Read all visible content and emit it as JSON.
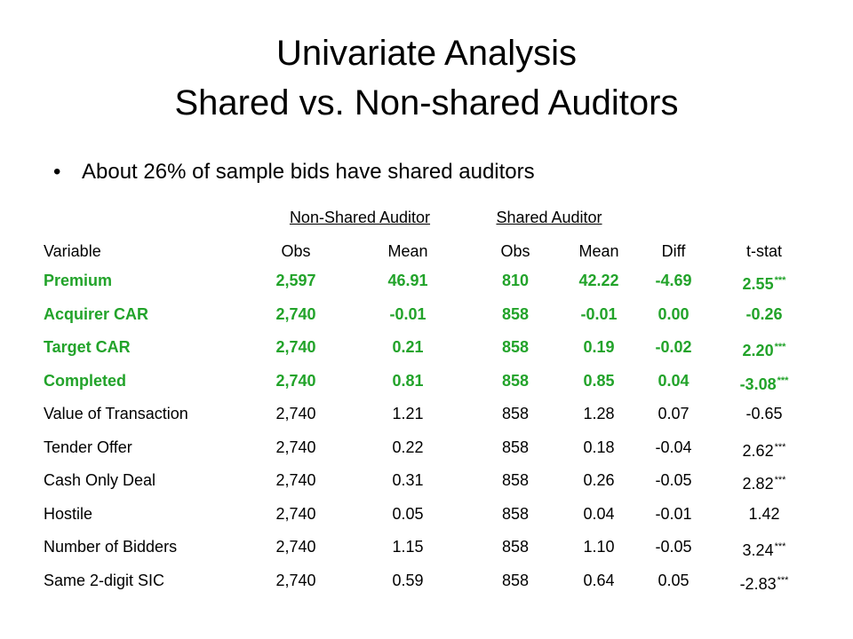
{
  "title": {
    "line1": "Univariate Analysis",
    "line2": "Shared vs. Non-shared Auditors"
  },
  "bullet": {
    "symbol": "•",
    "text": "About 26% of sample bids have shared auditors"
  },
  "group_headers": {
    "non_shared": "Non-Shared Auditor",
    "shared": "Shared Auditor"
  },
  "columns": {
    "variable": "Variable",
    "obs1": "Obs",
    "mean1": "Mean",
    "obs2": "Obs",
    "mean2": "Mean",
    "diff": "Diff",
    "tstat": "t-stat"
  },
  "colors": {
    "highlight": "#22a32a",
    "text": "#000000"
  },
  "rows": [
    {
      "variable": "Premium",
      "obs1": "2,597",
      "mean1": "46.91",
      "obs2": "810",
      "mean2": "42.22",
      "diff": "-4.69",
      "tstat": "2.55",
      "stars": "***",
      "highlight": true
    },
    {
      "variable": "Acquirer CAR",
      "obs1": "2,740",
      "mean1": "-0.01",
      "obs2": "858",
      "mean2": "-0.01",
      "diff": "0.00",
      "tstat": "-0.26",
      "stars": "",
      "highlight": true
    },
    {
      "variable": "Target CAR",
      "obs1": "2,740",
      "mean1": "0.21",
      "obs2": "858",
      "mean2": "0.19",
      "diff": "-0.02",
      "tstat": "2.20",
      "stars": "***",
      "highlight": true
    },
    {
      "variable": "Completed",
      "obs1": "2,740",
      "mean1": "0.81",
      "obs2": "858",
      "mean2": "0.85",
      "diff": "0.04",
      "tstat": "-3.08",
      "stars": "***",
      "highlight": true
    },
    {
      "variable": "Value of Transaction",
      "obs1": "2,740",
      "mean1": "1.21",
      "obs2": "858",
      "mean2": "1.28",
      "diff": "0.07",
      "tstat": "-0.65",
      "stars": "",
      "highlight": false
    },
    {
      "variable": "Tender Offer",
      "obs1": "2,740",
      "mean1": "0.22",
      "obs2": "858",
      "mean2": "0.18",
      "diff": "-0.04",
      "tstat": "2.62",
      "stars": "***",
      "highlight": false
    },
    {
      "variable": "Cash Only Deal",
      "obs1": "2,740",
      "mean1": "0.31",
      "obs2": "858",
      "mean2": "0.26",
      "diff": "-0.05",
      "tstat": "2.82",
      "stars": "***",
      "highlight": false
    },
    {
      "variable": "Hostile",
      "obs1": "2,740",
      "mean1": "0.05",
      "obs2": "858",
      "mean2": "0.04",
      "diff": "-0.01",
      "tstat": "1.42",
      "stars": "",
      "highlight": false
    },
    {
      "variable": "Number of Bidders",
      "obs1": "2,740",
      "mean1": "1.15",
      "obs2": "858",
      "mean2": "1.10",
      "diff": "-0.05",
      "tstat": "3.24",
      "stars": "***",
      "highlight": false
    },
    {
      "variable": "Same 2-digit SIC",
      "obs1": "2,740",
      "mean1": "0.59",
      "obs2": "858",
      "mean2": "0.64",
      "diff": "0.05",
      "tstat": "-2.83",
      "stars": "***",
      "highlight": false
    }
  ]
}
